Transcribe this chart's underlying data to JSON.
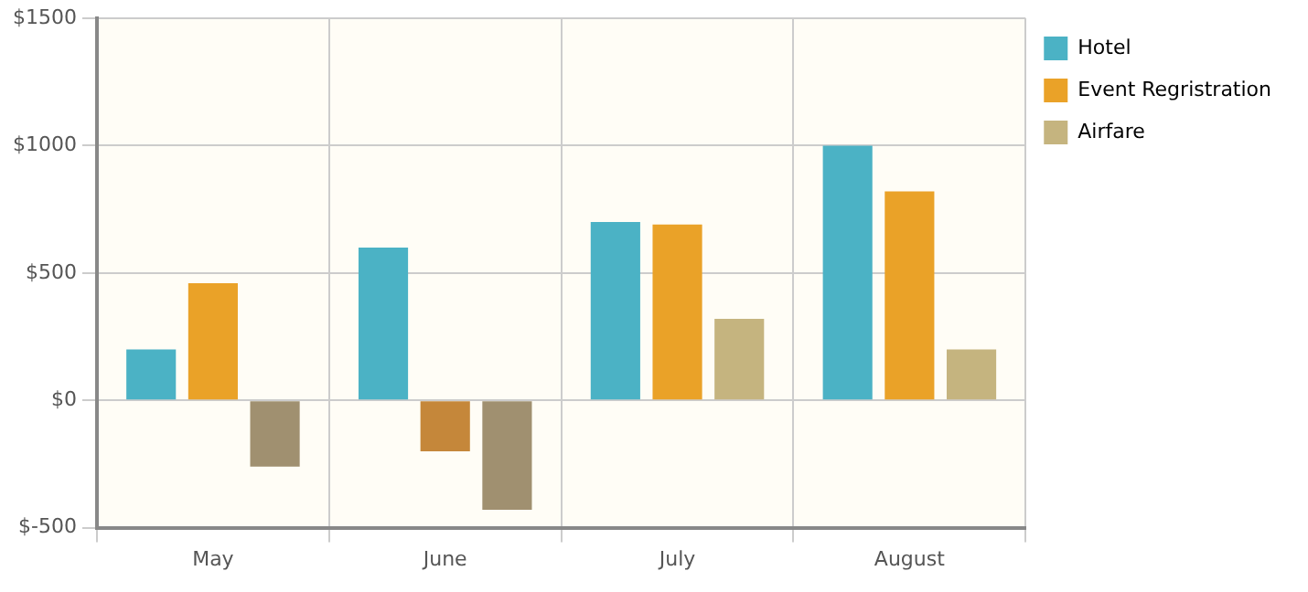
{
  "chart_data": {
    "type": "bar",
    "categories": [
      "May",
      "June",
      "July",
      "August"
    ],
    "series": [
      {
        "name": "Hotel",
        "color": "#4bb2c5",
        "values": [
          200,
          600,
          700,
          1000
        ]
      },
      {
        "name": "Event Regristration",
        "color": "#eaa228",
        "colors": [
          "#eaa228",
          "#c5873a",
          "#eaa228",
          "#eaa228"
        ],
        "values": [
          460,
          -200,
          690,
          820
        ]
      },
      {
        "name": "Airfare",
        "color": "#c5b47f",
        "colors": [
          "#a09070",
          "#a09070",
          "#c5b47f",
          "#c5b47f"
        ],
        "values": [
          -260,
          -430,
          320,
          200
        ]
      }
    ],
    "ylim": [
      -500,
      1500
    ],
    "yticks": [
      {
        "value": -500,
        "label": "$-500"
      },
      {
        "value": 0,
        "label": "$0"
      },
      {
        "value": 500,
        "label": "$500"
      },
      {
        "value": 1000,
        "label": "$1000"
      },
      {
        "value": 1500,
        "label": "$1500"
      }
    ],
    "grid": true,
    "legend": "top right"
  }
}
